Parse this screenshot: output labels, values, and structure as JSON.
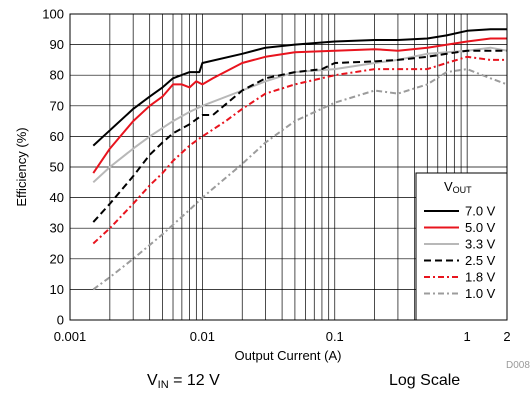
{
  "chart_data": {
    "type": "line",
    "xlabel": "Output Current (A)",
    "ylabel": "Efficiency (%)",
    "x_scale": "log",
    "xlim": [
      0.001,
      2
    ],
    "ylim": [
      0,
      100
    ],
    "x_ticks": [
      0.001,
      0.01,
      0.1,
      1,
      2
    ],
    "x_tick_labels": [
      "0.001",
      "0.01",
      "0.1",
      "1",
      "2"
    ],
    "y_ticks": [
      0,
      10,
      20,
      30,
      40,
      50,
      60,
      70,
      80,
      90,
      100
    ],
    "y_tick_labels": [
      "0",
      "10",
      "20",
      "30",
      "40",
      "50",
      "60",
      "70",
      "80",
      "90",
      "100"
    ],
    "grid": true,
    "legend_title_main": "V",
    "legend_title_sub": "OUT",
    "legend_position": "lower-right",
    "series": [
      {
        "name": "7.0 V",
        "color": "#000000",
        "dash": "solid",
        "x": [
          0.0015,
          0.002,
          0.003,
          0.004,
          0.005,
          0.006,
          0.008,
          0.0095,
          0.01,
          0.02,
          0.03,
          0.05,
          0.1,
          0.2,
          0.3,
          0.5,
          0.7,
          1.0,
          1.5,
          2.0
        ],
        "y": [
          57,
          62,
          69,
          73,
          76,
          79,
          81,
          81,
          84,
          87,
          89,
          90,
          91,
          91.5,
          91.5,
          92,
          93,
          94.5,
          95,
          95
        ]
      },
      {
        "name": "5.0 V",
        "color": "#e8141e",
        "dash": "solid",
        "x": [
          0.0015,
          0.002,
          0.003,
          0.004,
          0.005,
          0.006,
          0.007,
          0.008,
          0.009,
          0.01,
          0.012,
          0.02,
          0.03,
          0.05,
          0.1,
          0.2,
          0.3,
          0.5,
          1.0,
          1.5,
          2.0
        ],
        "y": [
          48,
          56,
          65,
          70,
          73,
          77,
          77,
          76,
          78,
          77,
          79,
          84,
          86,
          87.5,
          88,
          88.5,
          88,
          89,
          91,
          92,
          92
        ]
      },
      {
        "name": "3.3 V",
        "color": "#b8b8b8",
        "dash": "solid",
        "x": [
          0.0015,
          0.002,
          0.003,
          0.004,
          0.006,
          0.008,
          0.01,
          0.02,
          0.03,
          0.05,
          0.1,
          0.2,
          0.3,
          0.5,
          1.0,
          1.5,
          2.0
        ],
        "y": [
          45,
          50,
          56,
          60,
          65,
          68,
          70,
          75,
          78,
          81,
          82,
          84,
          85,
          87,
          88,
          89,
          88
        ]
      },
      {
        "name": "2.5 V",
        "color": "#000000",
        "dash": "longdash",
        "x": [
          0.0015,
          0.002,
          0.003,
          0.004,
          0.005,
          0.006,
          0.008,
          0.01,
          0.012,
          0.02,
          0.03,
          0.05,
          0.08,
          0.1,
          0.2,
          0.3,
          0.5,
          0.7,
          1.0,
          1.5,
          2.0
        ],
        "y": [
          32,
          38,
          47,
          54,
          58,
          61,
          64,
          67,
          67,
          75,
          79,
          81,
          82,
          84,
          84.5,
          85,
          86,
          87,
          88,
          88,
          88
        ]
      },
      {
        "name": "1.8 V",
        "color": "#e8141e",
        "dash": "dashdot",
        "x": [
          0.0015,
          0.002,
          0.003,
          0.004,
          0.005,
          0.006,
          0.008,
          0.01,
          0.015,
          0.02,
          0.03,
          0.05,
          0.1,
          0.2,
          0.3,
          0.5,
          0.7,
          1.0,
          1.5,
          2.0
        ],
        "y": [
          25,
          30,
          38,
          44,
          48,
          52,
          57,
          60,
          65,
          69,
          74,
          77,
          80,
          82,
          82,
          82,
          84,
          86,
          85,
          85
        ]
      },
      {
        "name": "1.0 V",
        "color": "#9c9c9c",
        "dash": "dashdot",
        "x": [
          0.0015,
          0.002,
          0.003,
          0.005,
          0.008,
          0.01,
          0.02,
          0.03,
          0.05,
          0.1,
          0.2,
          0.3,
          0.5,
          0.7,
          1.0,
          1.5,
          2.0
        ],
        "y": [
          10,
          14,
          20,
          28,
          36,
          40,
          51,
          58,
          65,
          71,
          75,
          74,
          77,
          81,
          82,
          79,
          77
        ]
      }
    ]
  },
  "watermark_id": "D008",
  "caption": {
    "vin_main": "V",
    "vin_sub": "IN",
    "vin_rest": " = 12 V",
    "scale": "Log Scale"
  }
}
